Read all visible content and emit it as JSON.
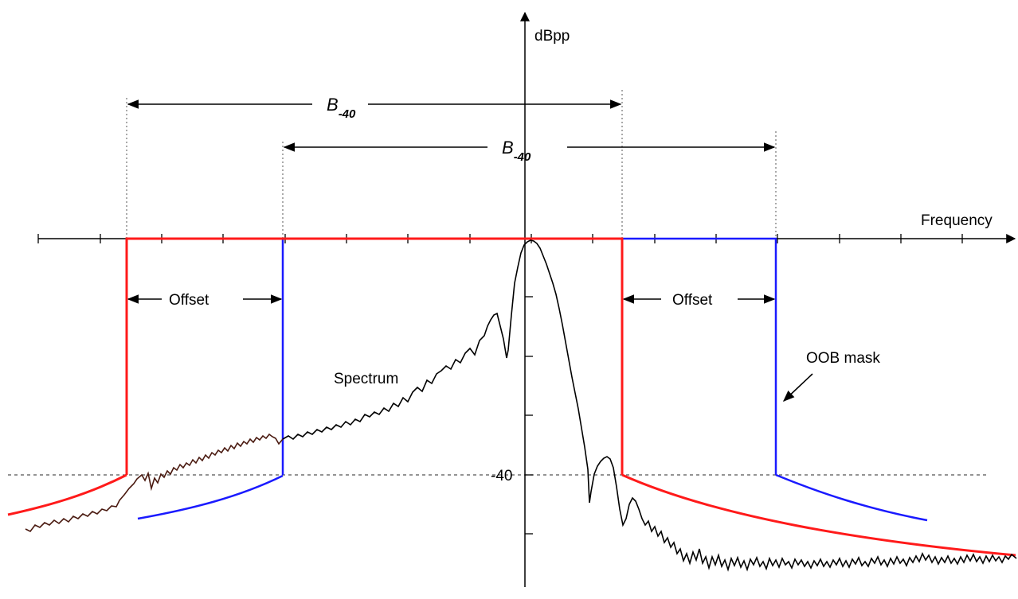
{
  "labels": {
    "y_axis": "dBpp",
    "x_axis": "Frequency",
    "level": "-40",
    "offset_left": "Offset",
    "offset_right": "Offset",
    "spectrum": "Spectrum",
    "oob_mask": "OOB mask",
    "bandwidth_upper": {
      "main": "B",
      "sub": "-40"
    },
    "bandwidth_lower": {
      "main": "B",
      "sub": "-40"
    }
  },
  "colors": {
    "red_mask": "#ff1a1a",
    "blue_mask": "#1a1aff",
    "spectrum": "#000000",
    "spectrum_left": "#4a1a10",
    "axis": "#000000",
    "guides": "#555555"
  }
}
